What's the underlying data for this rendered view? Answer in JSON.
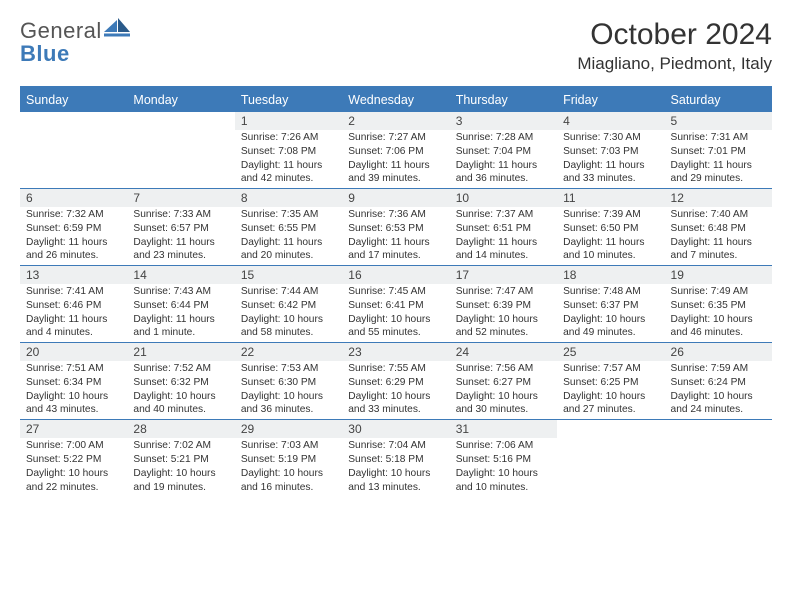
{
  "logo": {
    "line1": "General",
    "line2": "Blue"
  },
  "title": "October 2024",
  "location": "Miagliano, Piedmont, Italy",
  "style": {
    "accent": "#3d7ab8",
    "header_bg": "#3d7ab8",
    "header_fg": "#ffffff",
    "daynum_bg": "#eef0f1",
    "text_color": "#333333",
    "row_border": "#3d7ab8",
    "body_font_size": 10.2,
    "header_font_size": 12.5,
    "title_font_size": 30,
    "location_font_size": 17
  },
  "weekdays": [
    "Sunday",
    "Monday",
    "Tuesday",
    "Wednesday",
    "Thursday",
    "Friday",
    "Saturday"
  ],
  "weeks": [
    [
      null,
      null,
      {
        "n": "1",
        "sunrise": "7:26 AM",
        "sunset": "7:08 PM",
        "daylight": "11 hours and 42 minutes."
      },
      {
        "n": "2",
        "sunrise": "7:27 AM",
        "sunset": "7:06 PM",
        "daylight": "11 hours and 39 minutes."
      },
      {
        "n": "3",
        "sunrise": "7:28 AM",
        "sunset": "7:04 PM",
        "daylight": "11 hours and 36 minutes."
      },
      {
        "n": "4",
        "sunrise": "7:30 AM",
        "sunset": "7:03 PM",
        "daylight": "11 hours and 33 minutes."
      },
      {
        "n": "5",
        "sunrise": "7:31 AM",
        "sunset": "7:01 PM",
        "daylight": "11 hours and 29 minutes."
      }
    ],
    [
      {
        "n": "6",
        "sunrise": "7:32 AM",
        "sunset": "6:59 PM",
        "daylight": "11 hours and 26 minutes."
      },
      {
        "n": "7",
        "sunrise": "7:33 AM",
        "sunset": "6:57 PM",
        "daylight": "11 hours and 23 minutes."
      },
      {
        "n": "8",
        "sunrise": "7:35 AM",
        "sunset": "6:55 PM",
        "daylight": "11 hours and 20 minutes."
      },
      {
        "n": "9",
        "sunrise": "7:36 AM",
        "sunset": "6:53 PM",
        "daylight": "11 hours and 17 minutes."
      },
      {
        "n": "10",
        "sunrise": "7:37 AM",
        "sunset": "6:51 PM",
        "daylight": "11 hours and 14 minutes."
      },
      {
        "n": "11",
        "sunrise": "7:39 AM",
        "sunset": "6:50 PM",
        "daylight": "11 hours and 10 minutes."
      },
      {
        "n": "12",
        "sunrise": "7:40 AM",
        "sunset": "6:48 PM",
        "daylight": "11 hours and 7 minutes."
      }
    ],
    [
      {
        "n": "13",
        "sunrise": "7:41 AM",
        "sunset": "6:46 PM",
        "daylight": "11 hours and 4 minutes."
      },
      {
        "n": "14",
        "sunrise": "7:43 AM",
        "sunset": "6:44 PM",
        "daylight": "11 hours and 1 minute."
      },
      {
        "n": "15",
        "sunrise": "7:44 AM",
        "sunset": "6:42 PM",
        "daylight": "10 hours and 58 minutes."
      },
      {
        "n": "16",
        "sunrise": "7:45 AM",
        "sunset": "6:41 PM",
        "daylight": "10 hours and 55 minutes."
      },
      {
        "n": "17",
        "sunrise": "7:47 AM",
        "sunset": "6:39 PM",
        "daylight": "10 hours and 52 minutes."
      },
      {
        "n": "18",
        "sunrise": "7:48 AM",
        "sunset": "6:37 PM",
        "daylight": "10 hours and 49 minutes."
      },
      {
        "n": "19",
        "sunrise": "7:49 AM",
        "sunset": "6:35 PM",
        "daylight": "10 hours and 46 minutes."
      }
    ],
    [
      {
        "n": "20",
        "sunrise": "7:51 AM",
        "sunset": "6:34 PM",
        "daylight": "10 hours and 43 minutes."
      },
      {
        "n": "21",
        "sunrise": "7:52 AM",
        "sunset": "6:32 PM",
        "daylight": "10 hours and 40 minutes."
      },
      {
        "n": "22",
        "sunrise": "7:53 AM",
        "sunset": "6:30 PM",
        "daylight": "10 hours and 36 minutes."
      },
      {
        "n": "23",
        "sunrise": "7:55 AM",
        "sunset": "6:29 PM",
        "daylight": "10 hours and 33 minutes."
      },
      {
        "n": "24",
        "sunrise": "7:56 AM",
        "sunset": "6:27 PM",
        "daylight": "10 hours and 30 minutes."
      },
      {
        "n": "25",
        "sunrise": "7:57 AM",
        "sunset": "6:25 PM",
        "daylight": "10 hours and 27 minutes."
      },
      {
        "n": "26",
        "sunrise": "7:59 AM",
        "sunset": "6:24 PM",
        "daylight": "10 hours and 24 minutes."
      }
    ],
    [
      {
        "n": "27",
        "sunrise": "7:00 AM",
        "sunset": "5:22 PM",
        "daylight": "10 hours and 22 minutes."
      },
      {
        "n": "28",
        "sunrise": "7:02 AM",
        "sunset": "5:21 PM",
        "daylight": "10 hours and 19 minutes."
      },
      {
        "n": "29",
        "sunrise": "7:03 AM",
        "sunset": "5:19 PM",
        "daylight": "10 hours and 16 minutes."
      },
      {
        "n": "30",
        "sunrise": "7:04 AM",
        "sunset": "5:18 PM",
        "daylight": "10 hours and 13 minutes."
      },
      {
        "n": "31",
        "sunrise": "7:06 AM",
        "sunset": "5:16 PM",
        "daylight": "10 hours and 10 minutes."
      },
      null,
      null
    ]
  ],
  "labels": {
    "sunrise": "Sunrise:",
    "sunset": "Sunset:",
    "daylight": "Daylight:"
  }
}
